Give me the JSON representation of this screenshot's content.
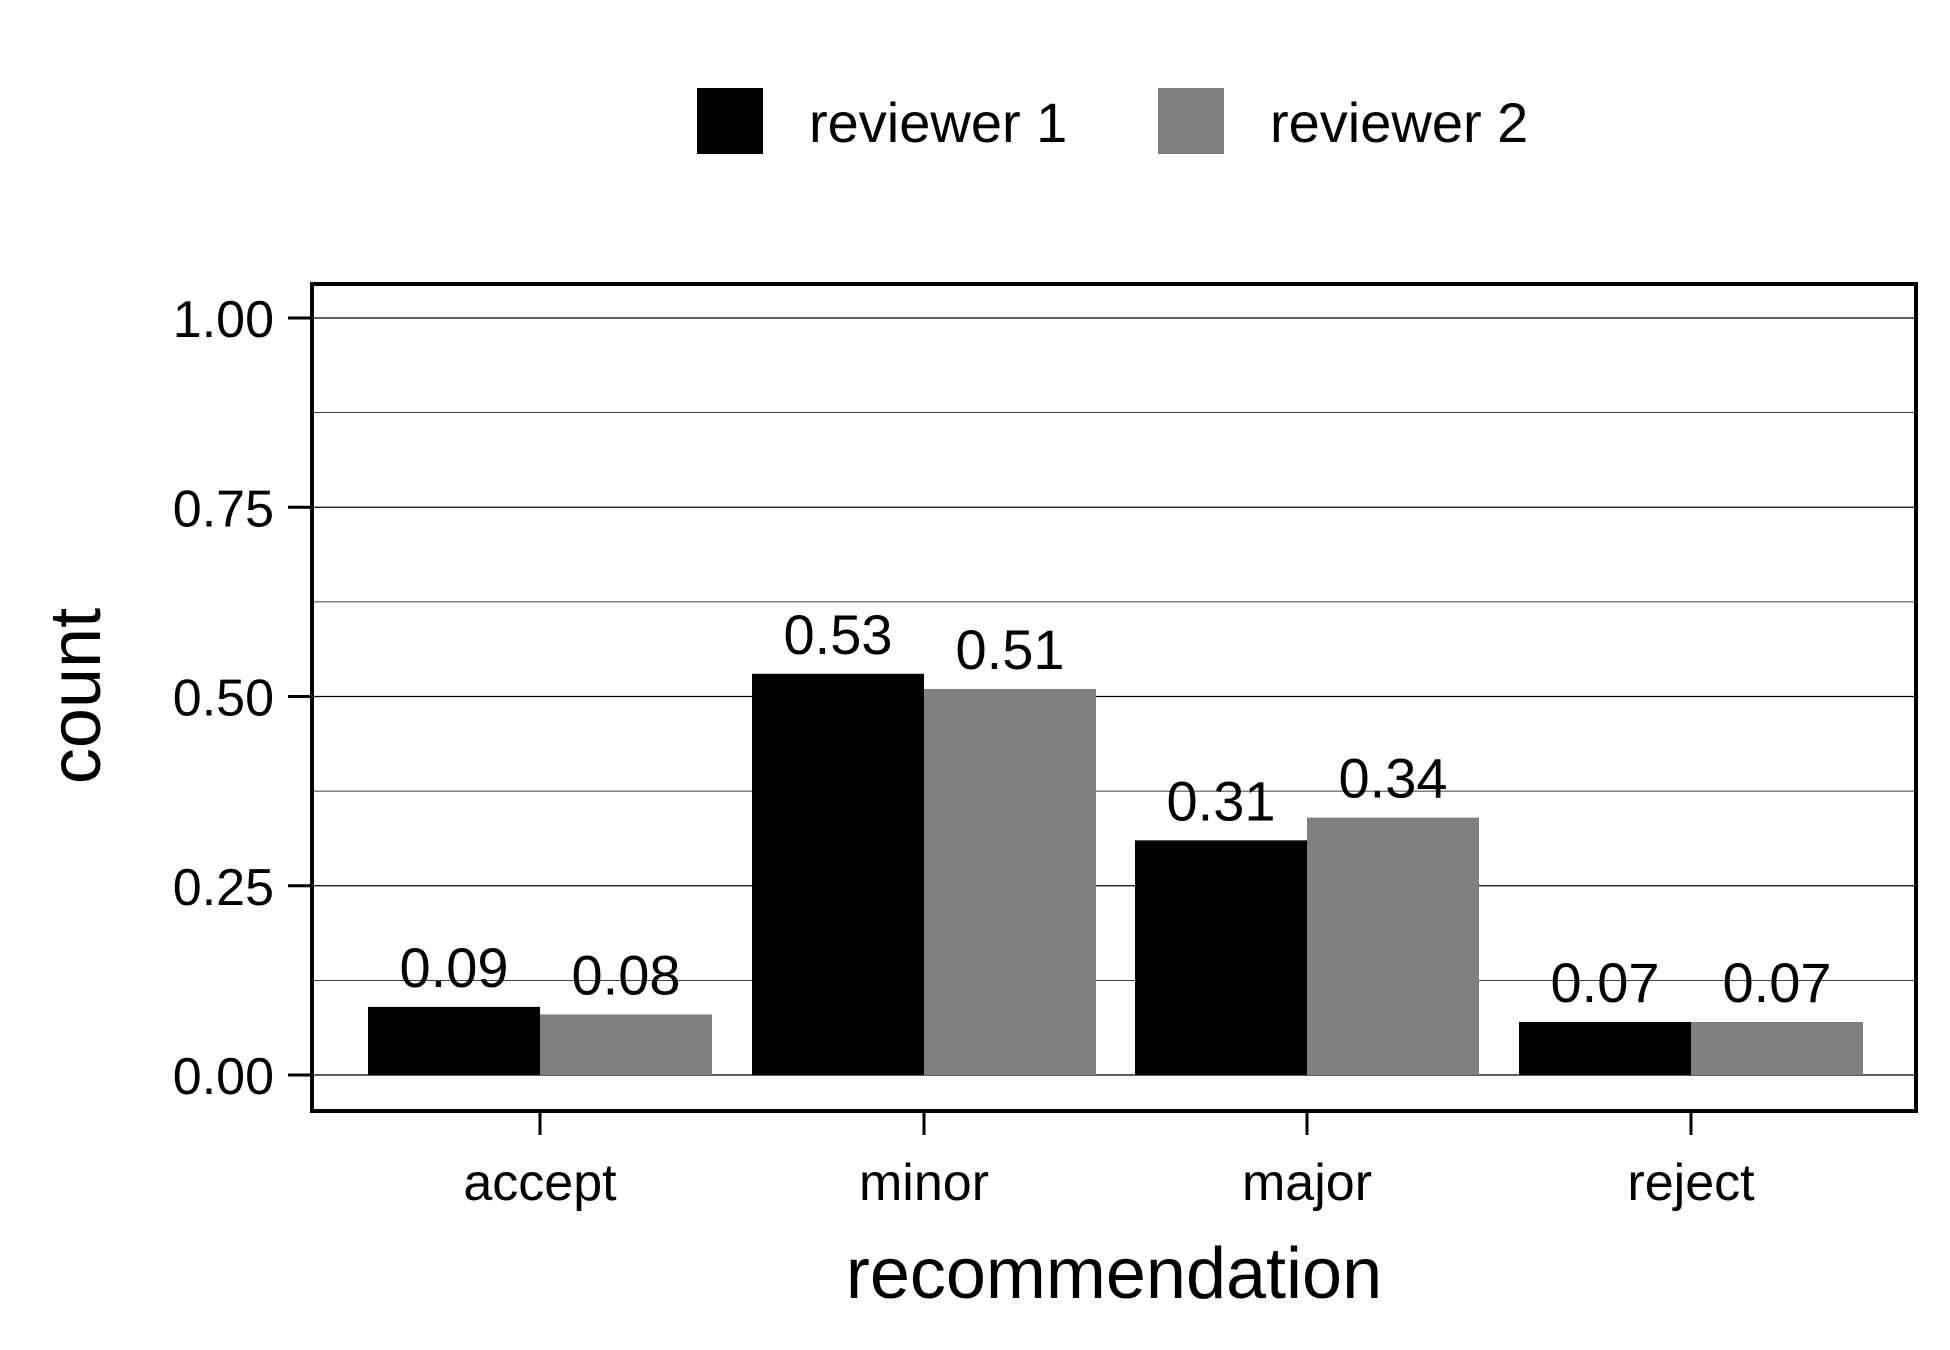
{
  "chart_data": {
    "type": "bar",
    "title": "",
    "xlabel": "recommendation",
    "ylabel": "count",
    "categories": [
      "accept",
      "minor",
      "major",
      "reject"
    ],
    "series": [
      {
        "name": "reviewer 1",
        "color": "#000000",
        "values": [
          0.09,
          0.53,
          0.31,
          0.07
        ]
      },
      {
        "name": "reviewer 2",
        "color": "#808080",
        "values": [
          0.08,
          0.51,
          0.34,
          0.07
        ]
      }
    ],
    "data_labels": [
      [
        "0.09",
        "0.53",
        "0.31",
        "0.07"
      ],
      [
        "0.08",
        "0.51",
        "0.34",
        "0.07"
      ]
    ],
    "ylim": [
      0,
      1.0
    ],
    "yticks": [
      0.0,
      0.25,
      0.5,
      0.75,
      1.0
    ],
    "ytick_labels": [
      "0.00",
      "0.25",
      "0.50",
      "0.75",
      "1.00"
    ],
    "grid": "horizontal major and minor",
    "legend_position": "top"
  }
}
